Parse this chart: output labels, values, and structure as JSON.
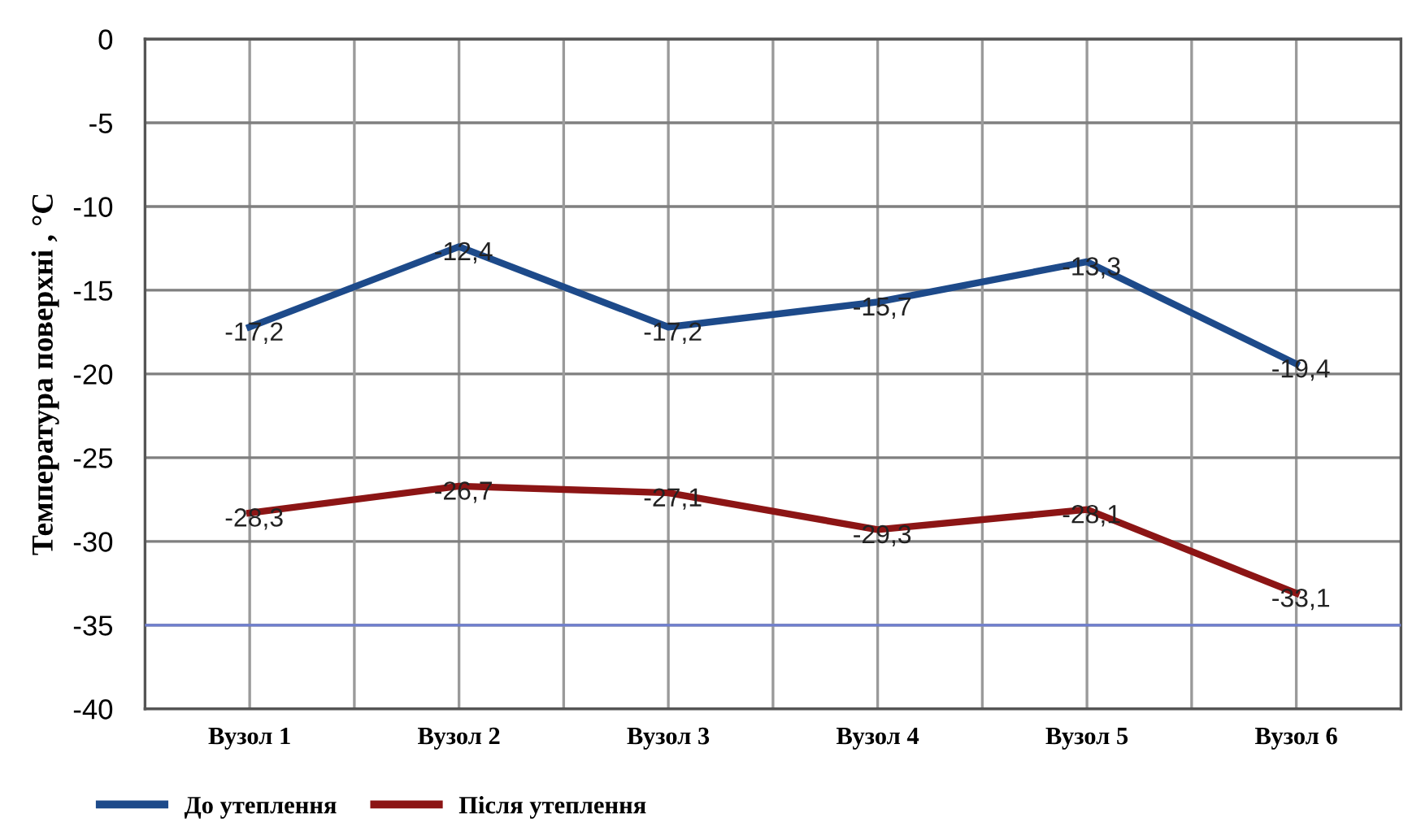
{
  "chart_data": {
    "type": "line",
    "ylabel": "Температура поверхні , °С",
    "categories": [
      "Вузол 1",
      "Вузол 2",
      "Вузол 3",
      "Вузол 4",
      "Вузол 5",
      "Вузол 6"
    ],
    "series": [
      {
        "name": "До утеплення",
        "color": "#1d4a8a",
        "values": [
          -17.2,
          -12.4,
          -17.2,
          -15.7,
          -13.3,
          -19.4
        ],
        "value_labels": [
          "-17,2",
          "-12,4",
          "-17,2",
          "-15,7",
          "-13,3",
          "-19,4"
        ]
      },
      {
        "name": "Після утеплення",
        "color": "#8c1515",
        "values": [
          -28.3,
          -26.7,
          -27.1,
          -29.3,
          -28.1,
          -33.1
        ],
        "value_labels": [
          "-28,3",
          "-26,7",
          "-27,1",
          "-29,3",
          "-28,1",
          "-33,1"
        ]
      }
    ],
    "ylim": [
      -40,
      0
    ],
    "yticks": [
      0,
      -5,
      -10,
      -15,
      -20,
      -25,
      -30,
      -35,
      -40
    ],
    "ref_lines": [
      {
        "axis": "y",
        "value": -35,
        "color": "#6f7fcf"
      }
    ],
    "grid": true,
    "legend": "bottom",
    "marker": "none",
    "line_style": "solid"
  }
}
